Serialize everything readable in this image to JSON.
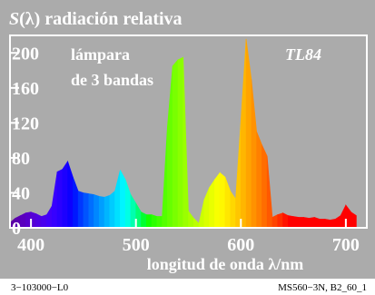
{
  "chart_data": {
    "type": "area",
    "title": "S(λ) radiación relativa",
    "title_prefix": "S",
    "title_paren": "(λ)",
    "title_rest": " radiación relativa",
    "series_label_line1": "lámpara",
    "series_label_line2": "de 3 bandas",
    "lamp_label": "TL84",
    "xlabel": "longitud de onda λ/nm",
    "xlim": [
      380,
      720
    ],
    "ylim": [
      0,
      220
    ],
    "x_ticks": [
      400,
      500,
      600,
      700
    ],
    "x_tick_labels": [
      "400",
      "500",
      "600",
      "700"
    ],
    "y_ticks": [
      0,
      40,
      80,
      120,
      160,
      200
    ],
    "y_tick_labels": [
      "0",
      "40",
      "80",
      "120",
      "160",
      "200"
    ],
    "grid": false,
    "spectral_fill": true,
    "x": [
      380,
      385,
      390,
      395,
      400,
      405,
      410,
      415,
      420,
      425,
      430,
      435,
      440,
      445,
      450,
      455,
      460,
      465,
      470,
      475,
      480,
      485,
      490,
      495,
      500,
      505,
      510,
      515,
      520,
      525,
      530,
      535,
      540,
      545,
      550,
      555,
      560,
      565,
      570,
      575,
      580,
      585,
      590,
      595,
      600,
      605,
      610,
      615,
      620,
      625,
      630,
      635,
      640,
      645,
      650,
      655,
      660,
      665,
      670,
      675,
      680,
      685,
      690,
      695,
      700,
      705,
      710
    ],
    "y": [
      6,
      11,
      14,
      17,
      18,
      16,
      13,
      15,
      25,
      64,
      67,
      76,
      58,
      42,
      40,
      39,
      38,
      36,
      35,
      37,
      42,
      66,
      55,
      38,
      28,
      18,
      15,
      15,
      13,
      13,
      116,
      185,
      192,
      195,
      19,
      11,
      5,
      32,
      46,
      55,
      63,
      58,
      42,
      33,
      123,
      216,
      170,
      110,
      95,
      82,
      12,
      15,
      17,
      14,
      13,
      12,
      12,
      11,
      12,
      10,
      10,
      9,
      10,
      14,
      26,
      18,
      14
    ],
    "colors": {
      "background": "#ababab",
      "text": "#ffffff",
      "frame": "#ffffff"
    }
  },
  "footer": {
    "left": "3−103000−L0",
    "right": "MS560−3N, B2_60_1"
  }
}
